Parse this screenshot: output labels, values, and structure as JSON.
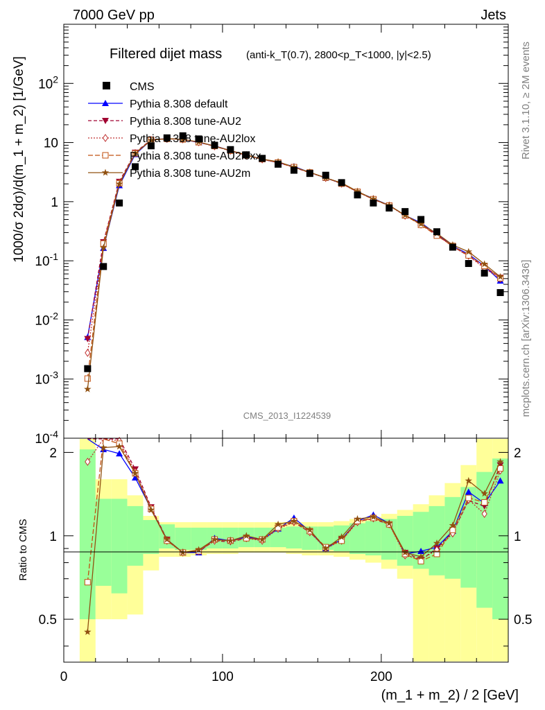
{
  "header": {
    "left": "7000 GeV pp",
    "right": "Jets"
  },
  "side_labels": {
    "top": "Rivet 3.1.10, ≥ 2M events",
    "bottom": "mcplots.cern.ch [arXiv:1306.3436]"
  },
  "watermark": "CMS_2013_I1224539",
  "chart_data": {
    "type": "line",
    "title": "Filtered dijet mass",
    "subtitle": "(anti-k_T(0.7), 2800<p_T<1000, |y|<2.5)",
    "xlabel": "(m_1 + m_2) / 2 [GeV]",
    "ylabel": "1000/σ 2dσ)/d(m_1 + m_2) [1/GeV]",
    "ratio_ylabel": "Ratio to CMS",
    "xlim": [
      0,
      280
    ],
    "ylim": [
      0.0001,
      1000
    ],
    "yscale": "log",
    "ratio_ylim": [
      0.35,
      2.25
    ],
    "x_ticks": [
      "0",
      "100",
      "200"
    ],
    "y_ticks": [
      "10^-4",
      "10^-3",
      "10^-2",
      "10^-1",
      "1",
      "10",
      "10^2"
    ],
    "ratio_ticks": [
      "0.5",
      "1",
      "2"
    ],
    "x": [
      15,
      25,
      35,
      45,
      55,
      65,
      75,
      85,
      95,
      105,
      115,
      125,
      135,
      145,
      155,
      165,
      175,
      185,
      195,
      205,
      215,
      225,
      235,
      245,
      255,
      265,
      275
    ],
    "data": {
      "name": "CMS",
      "values": [
        0.0015,
        0.08,
        0.95,
        3.9,
        8.8,
        12,
        13,
        11.5,
        9,
        7.6,
        6.2,
        5.4,
        4.3,
        3.4,
        3.0,
        2.8,
        2.1,
        1.3,
        0.95,
        0.78,
        0.68,
        0.5,
        0.31,
        0.17,
        0.09,
        0.062,
        0.029
      ],
      "band_inner": [
        0.5,
        0.66,
        0.62,
        0.78,
        0.86,
        0.9,
        0.89,
        0.89,
        0.9,
        0.9,
        0.91,
        0.91,
        0.91,
        0.9,
        0.89,
        0.89,
        0.88,
        0.86,
        0.85,
        0.82,
        0.78,
        0.76,
        0.72,
        0.7,
        0.65,
        0.55,
        0.5
      ],
      "band_inner_hi": [
        2.05,
        1.36,
        1.36,
        1.28,
        1.14,
        1.1,
        1.07,
        1.07,
        1.07,
        1.07,
        1.07,
        1.07,
        1.07,
        1.08,
        1.08,
        1.08,
        1.09,
        1.11,
        1.13,
        1.15,
        1.18,
        1.22,
        1.28,
        1.38,
        1.5,
        1.7,
        1.9
      ],
      "band_outer_lo": [
        0.3,
        0.5,
        0.5,
        0.52,
        0.75,
        0.84,
        0.84,
        0.85,
        0.86,
        0.86,
        0.87,
        0.87,
        0.87,
        0.86,
        0.85,
        0.85,
        0.84,
        0.82,
        0.8,
        0.76,
        0.7,
        0.3,
        0.3,
        0.3,
        0.3,
        0.3,
        0.3
      ],
      "band_outer_hi": [
        2.5,
        1.6,
        1.6,
        1.4,
        1.18,
        1.12,
        1.12,
        1.12,
        1.12,
        1.12,
        1.12,
        1.12,
        1.12,
        1.12,
        1.12,
        1.12,
        1.13,
        1.15,
        1.17,
        1.2,
        1.24,
        1.3,
        1.4,
        1.55,
        1.8,
        2.5,
        2.5
      ]
    },
    "series": [
      {
        "name": "Pythia 8.308 default",
        "color": "#0000ff",
        "dash": "",
        "marker": "tri-up",
        "ratio": [
          3.4,
          2.05,
          1.98,
          1.62,
          1.25,
          0.97,
          0.87,
          0.87,
          0.98,
          0.96,
          0.99,
          0.97,
          1.06,
          1.16,
          1.04,
          0.9,
          0.97,
          1.13,
          1.19,
          1.11,
          0.86,
          0.88,
          0.91,
          1.04,
          1.44,
          1.31,
          1.58
        ]
      },
      {
        "name": "Pythia 8.308 tune-AU2",
        "color": "#a00030",
        "dash": "5,3",
        "marker": "tri-down",
        "ratio": [
          3.2,
          2.6,
          2.3,
          1.74,
          1.27,
          0.97,
          0.87,
          0.88,
          0.96,
          0.95,
          0.98,
          0.97,
          1.07,
          1.12,
          1.03,
          0.91,
          0.97,
          1.13,
          1.15,
          1.1,
          0.87,
          0.82,
          0.9,
          1.03,
          1.34,
          1.28,
          1.8
        ]
      },
      {
        "name": "Pythia 8.308 tune-AU2lox",
        "color": "#c03030",
        "dash": "2,2",
        "marker": "diamond",
        "ratio": [
          1.85,
          2.3,
          2.2,
          1.7,
          1.26,
          0.96,
          0.87,
          0.88,
          0.96,
          0.96,
          0.98,
          0.96,
          1.06,
          1.12,
          1.03,
          0.9,
          0.96,
          1.12,
          1.16,
          1.1,
          0.85,
          0.82,
          0.89,
          1.02,
          1.35,
          1.2,
          1.72
        ]
      },
      {
        "name": "Pythia 8.308 tune-AU2loxx",
        "color": "#c05010",
        "dash": "7,3",
        "marker": "square",
        "ratio": [
          0.68,
          2.45,
          2.15,
          1.68,
          1.25,
          0.96,
          0.87,
          0.88,
          0.97,
          0.96,
          0.98,
          0.97,
          1.07,
          1.13,
          1.04,
          0.91,
          0.96,
          1.13,
          1.16,
          1.1,
          0.86,
          0.81,
          0.86,
          1.05,
          1.37,
          1.32,
          1.75
        ]
      },
      {
        "name": "Pythia 8.308 tune-AU2m",
        "color": "#905010",
        "dash": "",
        "marker": "star",
        "ratio": [
          0.45,
          2.08,
          2.1,
          1.68,
          1.24,
          0.97,
          0.87,
          0.89,
          0.97,
          0.96,
          1.0,
          0.97,
          1.1,
          1.13,
          1.05,
          0.9,
          0.99,
          1.15,
          1.17,
          1.11,
          0.87,
          0.84,
          0.94,
          1.09,
          1.58,
          1.42,
          1.85
        ]
      }
    ]
  }
}
